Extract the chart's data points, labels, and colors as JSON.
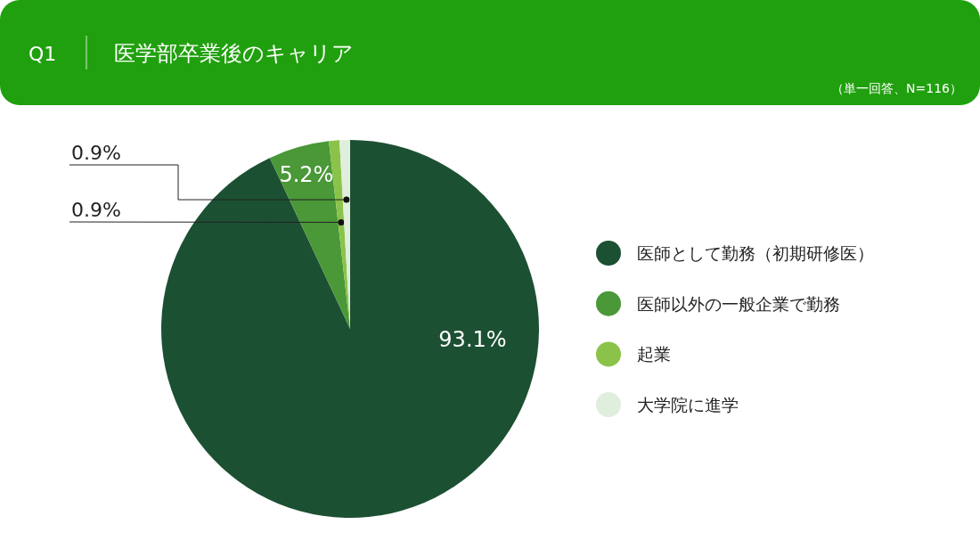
{
  "chart_data": {
    "type": "pie",
    "title": "医学部卒業後のキャリア",
    "annotations": [
      "Q1",
      "（単一回答、N=116）"
    ],
    "categories": [
      "医師として勤務（初期研修医）",
      "医師以外の一般企業で勤務",
      "起業",
      "大学院に進学"
    ],
    "values": [
      93.1,
      5.2,
      0.9,
      0.9
    ],
    "colors": [
      "#1c5032",
      "#4a9838",
      "#8bc34a",
      "#dfeedd"
    ],
    "value_labels": [
      "93.1%",
      "5.2%",
      "0.9%",
      "0.9%"
    ],
    "legend": "right"
  }
}
